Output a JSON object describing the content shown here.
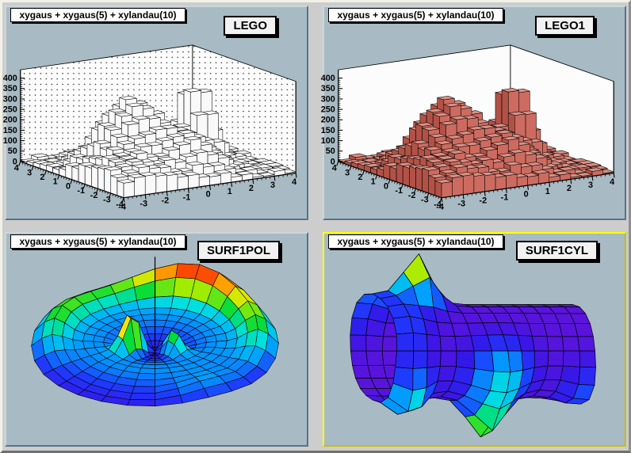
{
  "window": {
    "canvas_bg": "#cdcdcd",
    "frame_light": "#f2f1e7",
    "frame_dark": "#6f6f6f",
    "pad_bg": "#a8bac3",
    "pad_shadow": "#54748c",
    "selected_border": "#ffff00"
  },
  "palette": {
    "stops": [
      {
        "t": 0.0,
        "c": "#5a14dc"
      },
      {
        "t": 0.13,
        "c": "#3417e8"
      },
      {
        "t": 0.25,
        "c": "#1e3cff"
      },
      {
        "t": 0.38,
        "c": "#00a0ff"
      },
      {
        "t": 0.5,
        "c": "#00e0e0"
      },
      {
        "t": 0.6,
        "c": "#00dc3c"
      },
      {
        "t": 0.72,
        "c": "#a0ec00"
      },
      {
        "t": 0.82,
        "c": "#ffe400"
      },
      {
        "t": 0.9,
        "c": "#ff8c00"
      },
      {
        "t": 1.0,
        "c": "#ff1e00"
      }
    ]
  },
  "pads": [
    {
      "title": "xygaus + xygaus(5) + xylandau(10)",
      "label": "LEGO",
      "selected": false
    },
    {
      "title": "xygaus + xygaus(5) + xylandau(10)",
      "label": "LEGO1",
      "selected": false
    },
    {
      "title": "xygaus + xygaus(5) + xylandau(10)",
      "label": "SURF1POL",
      "selected": false
    },
    {
      "title": "xygaus + xygaus(5) + xylandau(10)",
      "label": "SURF1CYL",
      "selected": true
    }
  ],
  "chart_data": [
    {
      "type": "3d-lego",
      "draw_option": "LEGO",
      "function": "xygaus + xygaus(5) + xylandau(10)",
      "title": "xygaus + xygaus(5) + xylandau(10)",
      "x_range": [
        -4,
        4
      ],
      "y_range": [
        -4,
        4
      ],
      "z_range": [
        0,
        400
      ],
      "x_ticks": [
        -4,
        -3,
        -2,
        -1,
        0,
        1,
        2,
        3,
        4
      ],
      "y_ticks": [
        4,
        3,
        2,
        1,
        0,
        -1,
        -2,
        -3,
        -4
      ],
      "z_ticks": [
        0,
        50,
        100,
        150,
        200,
        250,
        300,
        350,
        400
      ],
      "bins": [
        16,
        16
      ],
      "bar_style": "hollow",
      "bar_fill": "#f9f9f9",
      "wall_dotted": true,
      "surface_model": {
        "peaks": [
          {
            "A": 310,
            "x0": -1.1,
            "sx": 1.15,
            "y0": 0.3,
            "sy": 1.15
          },
          {
            "A": 360,
            "x0": 2.0,
            "sx": 0.5,
            "y0": 0.4,
            "sy": 0.7
          },
          {
            "A": 150,
            "x0": 0.4,
            "sx": 0.9,
            "y0": -1.9,
            "sy": 1.0
          },
          {
            "A": 120,
            "x0": -2.7,
            "sx": 1.4,
            "y0": -2.3,
            "sy": 1.5
          }
        ],
        "noise_amp": 26
      }
    },
    {
      "type": "3d-lego",
      "draw_option": "LEGO1",
      "function": "xygaus + xygaus(5) + xylandau(10)",
      "title": "xygaus + xygaus(5) + xylandau(10)",
      "x_range": [
        -4,
        4
      ],
      "y_range": [
        -4,
        4
      ],
      "z_range": [
        0,
        400
      ],
      "x_ticks": [
        -4,
        -3,
        -2,
        -1,
        0,
        1,
        2,
        3,
        4
      ],
      "y_ticks": [
        4,
        3,
        2,
        1,
        0,
        -1,
        -2,
        -3,
        -4
      ],
      "z_ticks": [
        0,
        50,
        100,
        150,
        200,
        250,
        300,
        350,
        400
      ],
      "bins": [
        16,
        16
      ],
      "bar_style": "solid",
      "bar_colors": {
        "top": "#db8f84",
        "front": "#cd6b60",
        "side": "#b25247"
      },
      "wall_dotted": false,
      "surface_model": {
        "peaks": [
          {
            "A": 310,
            "x0": -1.1,
            "sx": 1.15,
            "y0": 0.3,
            "sy": 1.15
          },
          {
            "A": 360,
            "x0": 2.0,
            "sx": 0.5,
            "y0": 0.4,
            "sy": 0.7
          },
          {
            "A": 150,
            "x0": 0.4,
            "sx": 0.9,
            "y0": -1.9,
            "sy": 1.0
          },
          {
            "A": 120,
            "x0": -2.7,
            "sx": 1.4,
            "y0": -2.3,
            "sy": 1.5
          }
        ],
        "noise_amp": 26
      }
    },
    {
      "type": "3d-surface-polar",
      "draw_option": "SURF1POL",
      "function": "xygaus + xygaus(5) + xylandau(10)",
      "title": "xygaus + xygaus(5) + xylandau(10)",
      "model": {
        "radial_steps": 12,
        "angular_steps": 28,
        "base": {
          "low": 8,
          "mid_amp": 16,
          "mid_r": 0.5,
          "mid_s": 0.33
        },
        "peaks": [
          {
            "A": 62,
            "r0": 0.22,
            "sr": 0.12,
            "th": 148,
            "sth": 15
          },
          {
            "A": 34,
            "r0": 0.19,
            "sr": 0.12,
            "th": 40,
            "sth": 17
          }
        ],
        "ridge": {
          "r0": 0.85,
          "sr": 0.17,
          "lobes": [
            {
              "A": 58,
              "th": 295,
              "sth": 50
            },
            {
              "A": 30,
              "th": 205,
              "sth": 38
            },
            {
              "A": 16,
              "th": 0,
              "sth": 28
            },
            {
              "A": 12,
              "th": 60,
              "sth": 22
            }
          ]
        },
        "color_max": 66
      }
    },
    {
      "type": "3d-surface-cylindrical",
      "draw_option": "SURF1CYL",
      "function": "xygaus + xygaus(5) + xylandau(10)",
      "title": "xygaus + xygaus(5) + xylandau(10)",
      "model": {
        "u_steps": 13,
        "phi_steps": 20,
        "radius": 60,
        "bumps": [
          {
            "A": 66,
            "u0": 0.22,
            "su": 0.09,
            "phi": 180,
            "sphi": 25
          },
          {
            "A": 38,
            "u0": 0.1,
            "su": 0.1,
            "phi": 35,
            "sphi": 30
          },
          {
            "A": 50,
            "u0": 0.54,
            "su": 0.09,
            "phi": 5,
            "sphi": 25
          },
          {
            "A": 32,
            "u0": 0.52,
            "su": 0.16,
            "phi": 60,
            "sphi": 40
          },
          {
            "A": 20,
            "u0": 0.97,
            "su": 0.1,
            "phi": 40,
            "sphi": 35
          },
          {
            "A": 20,
            "u0": 0.03,
            "su": 0.08,
            "phi": 210,
            "sphi": 45
          },
          {
            "A": 16,
            "u0": 0.07,
            "su": 0.12,
            "phi": 120,
            "sphi": 50
          }
        ],
        "color_max": 60
      }
    }
  ]
}
